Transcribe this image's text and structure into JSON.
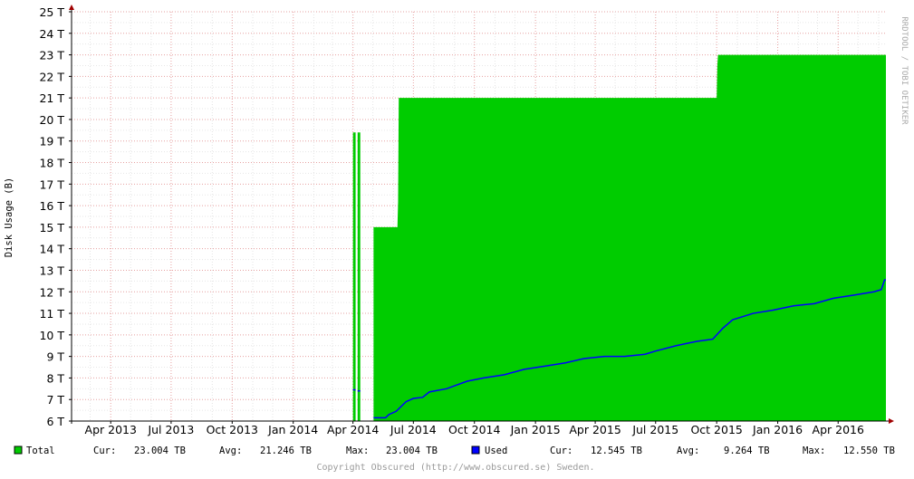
{
  "chart_data": {
    "type": "area",
    "ylabel": "Disk Usage (B)",
    "y_unit_suffix": "T",
    "ylim": [
      6,
      25
    ],
    "y_ticks": [
      6,
      7,
      8,
      9,
      10,
      11,
      12,
      13,
      14,
      15,
      16,
      17,
      18,
      19,
      20,
      21,
      22,
      23,
      24,
      25
    ],
    "xlim": [
      "2013-02-01",
      "2016-06-12"
    ],
    "x_tick_labels": [
      {
        "date": "2013-04-01",
        "label": "Apr 2013"
      },
      {
        "date": "2013-07-01",
        "label": "Jul 2013"
      },
      {
        "date": "2013-10-01",
        "label": "Oct 2013"
      },
      {
        "date": "2014-01-01",
        "label": "Jan 2014"
      },
      {
        "date": "2014-04-01",
        "label": "Apr 2014"
      },
      {
        "date": "2014-07-01",
        "label": "Jul 2014"
      },
      {
        "date": "2014-10-01",
        "label": "Oct 2014"
      },
      {
        "date": "2015-01-01",
        "label": "Jan 2015"
      },
      {
        "date": "2015-04-01",
        "label": "Apr 2015"
      },
      {
        "date": "2015-07-01",
        "label": "Jul 2015"
      },
      {
        "date": "2015-10-01",
        "label": "Oct 2015"
      },
      {
        "date": "2016-01-01",
        "label": "Jan 2016"
      },
      {
        "date": "2016-04-01",
        "label": "Apr 2016"
      }
    ],
    "grid": true,
    "series": [
      {
        "name": "Total",
        "color": "#00cc00",
        "style": "area",
        "segments": [
          [
            [
              "2014-04-01",
              19.4
            ],
            [
              "2014-04-05",
              19.4
            ]
          ],
          [
            [
              "2014-04-08",
              19.4
            ],
            [
              "2014-04-12",
              19.4
            ]
          ],
          [
            [
              "2014-05-02",
              15.0
            ],
            [
              "2014-06-07",
              15.0
            ],
            [
              "2014-06-08",
              16.2
            ],
            [
              "2014-06-09",
              21.0
            ],
            [
              "2015-10-01",
              21.0
            ],
            [
              "2015-10-02",
              22.5
            ],
            [
              "2015-10-03",
              23.0
            ],
            [
              "2016-06-12",
              23.0
            ]
          ]
        ]
      },
      {
        "name": "Used",
        "color": "#0000ff",
        "style": "line",
        "segments": [
          [
            [
              "2014-04-01",
              7.45
            ],
            [
              "2014-04-05",
              7.45
            ]
          ],
          [
            [
              "2014-04-08",
              7.4
            ],
            [
              "2014-04-12",
              7.4
            ]
          ],
          [
            [
              "2014-05-02",
              6.15
            ],
            [
              "2014-05-20",
              6.15
            ],
            [
              "2014-05-25",
              6.3
            ],
            [
              "2014-06-05",
              6.45
            ],
            [
              "2014-06-20",
              6.9
            ],
            [
              "2014-07-01",
              7.05
            ],
            [
              "2014-07-15",
              7.1
            ],
            [
              "2014-07-25",
              7.35
            ],
            [
              "2014-08-20",
              7.5
            ],
            [
              "2014-09-20",
              7.85
            ],
            [
              "2014-10-15",
              8.0
            ],
            [
              "2014-11-15",
              8.15
            ],
            [
              "2014-12-15",
              8.4
            ],
            [
              "2015-01-15",
              8.55
            ],
            [
              "2015-02-15",
              8.7
            ],
            [
              "2015-03-15",
              8.9
            ],
            [
              "2015-04-15",
              9.0
            ],
            [
              "2015-05-15",
              9.0
            ],
            [
              "2015-06-15",
              9.1
            ],
            [
              "2015-07-01",
              9.25
            ],
            [
              "2015-08-01",
              9.5
            ],
            [
              "2015-09-01",
              9.7
            ],
            [
              "2015-09-25",
              9.8
            ],
            [
              "2015-10-10",
              10.3
            ],
            [
              "2015-10-25",
              10.7
            ],
            [
              "2015-11-25",
              11.0
            ],
            [
              "2015-12-25",
              11.15
            ],
            [
              "2016-01-25",
              11.35
            ],
            [
              "2016-02-25",
              11.45
            ],
            [
              "2016-03-25",
              11.7
            ],
            [
              "2016-04-25",
              11.85
            ],
            [
              "2016-05-25",
              12.0
            ],
            [
              "2016-06-05",
              12.1
            ],
            [
              "2016-06-10",
              12.55
            ],
            [
              "2016-06-12",
              12.55
            ]
          ]
        ]
      }
    ]
  },
  "legend": {
    "total": {
      "label": "Total",
      "color": "#00cc00",
      "cur_label": "Cur:",
      "cur": "23.004 TB",
      "avg_label": "Avg:",
      "avg": "21.246 TB",
      "max_label": "Max:",
      "max": "23.004 TB"
    },
    "used": {
      "label": "Used",
      "color": "#0000ff",
      "cur_label": "Cur:",
      "cur": "12.545 TB",
      "avg_label": "Avg:",
      "avg": "9.264 TB",
      "max_label": "Max:",
      "max": "12.550 TB"
    }
  },
  "watermark": "RRDTOOL / TOBI OETIKER",
  "copyright": "Copyright Obscured (http://www.obscured.se) Sweden."
}
